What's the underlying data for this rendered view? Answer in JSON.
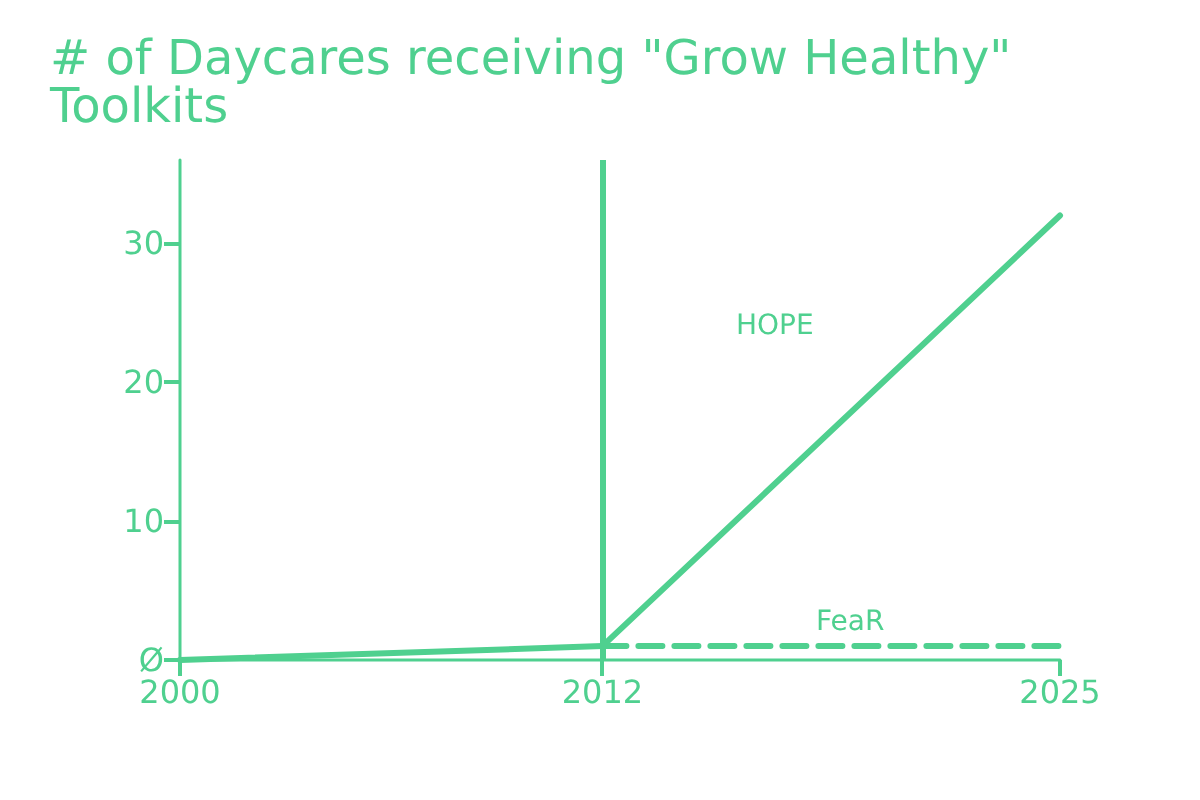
{
  "chart_data": {
    "type": "line",
    "title": "# of Daycares receiving \"Grow Healthy\" Toolkits",
    "xlim": [
      2000,
      2025
    ],
    "xticks": [
      2000,
      2012,
      2025
    ],
    "ylim": [
      0,
      36
    ],
    "yticks": [
      {
        "value": 0,
        "label": "Ø"
      },
      10,
      20,
      30
    ],
    "series": [
      {
        "color": "#4fd08f",
        "x": [
          2000,
          2012
        ],
        "values": [
          0,
          1
        ]
      },
      {
        "name": "HOPE",
        "color": "#4fd08f",
        "x": [
          2012,
          2025
        ],
        "values": [
          1,
          32
        ]
      },
      {
        "name": "FeaR",
        "color": "#4fd08f",
        "x": [
          2012,
          2025
        ],
        "values": [
          1,
          1
        ],
        "line_style": "dashed"
      }
    ],
    "ref_lines": [
      {
        "axis": "x",
        "value": 2012,
        "color": "#4fd08f"
      }
    ],
    "grid": false,
    "legend": false,
    "marker": "none"
  }
}
